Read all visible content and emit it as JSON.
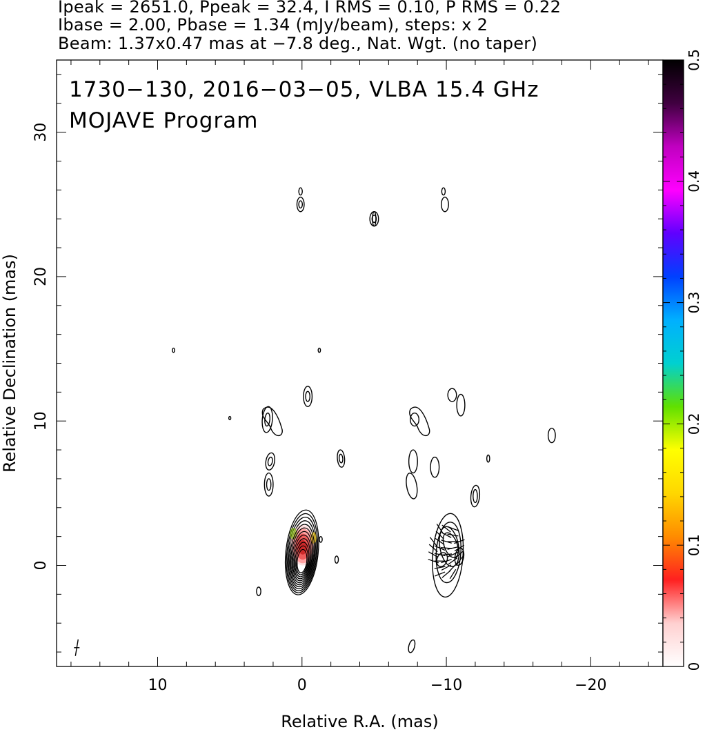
{
  "header": {
    "line1": "Ipeak = 2651.0, Ppeak = 32.4, I RMS = 0.10, P RMS = 0.22",
    "line2": "Ibase = 2.00, Pbase = 1.34 (mJy/beam), steps: x 2",
    "line3": "Beam: 1.37x0.47 mas at −7.8 deg., Nat. Wgt. (no taper)"
  },
  "chart_data": {
    "type": "contour",
    "title": "1730−130, 2016−03−05, VLBA 15.4 GHz",
    "subtitle": "MOJAVE Program",
    "xlabel": "Relative R.A. (mas)",
    "ylabel": "Relative Declination (mas)",
    "xlim": [
      17.0,
      -25.0
    ],
    "ylim": [
      -7.0,
      35.0
    ],
    "x_ticks": [
      10,
      0,
      -10,
      -20
    ],
    "x_tick_labels": [
      "10",
      "0",
      "−10",
      "−20"
    ],
    "y_ticks": [
      0,
      10,
      20,
      30
    ],
    "y_tick_labels": [
      "0",
      "10",
      "20",
      "30"
    ],
    "colorbar": {
      "range": [
        0,
        0.5
      ],
      "ticks": [
        0,
        0.1,
        0.2,
        0.3,
        0.4,
        0.5
      ],
      "tick_labels": [
        "0",
        "0.1",
        "0.2",
        "0.3",
        "0.4",
        "0.5"
      ],
      "colors": [
        "#ffffff",
        "#ffd0d0",
        "#ff2020",
        "#ff8c00",
        "#ffd700",
        "#ffff00",
        "#60e000",
        "#00d0d0",
        "#00b0ff",
        "#0040ff",
        "#6000ff",
        "#ff00ff",
        "#c000c0",
        "#400040",
        "#000000"
      ]
    },
    "core_peak_mJy": 2651.0,
    "left_panel_components": [
      {
        "x": 0.0,
        "y": 0.8,
        "type": "core"
      },
      {
        "x": 2.4,
        "y": 10.1
      },
      {
        "x": 2.2,
        "y": 7.2
      },
      {
        "x": 2.3,
        "y": 5.6
      },
      {
        "x": -0.4,
        "y": 11.7
      },
      {
        "x": -2.7,
        "y": 7.4
      },
      {
        "x": 0.1,
        "y": 25.0
      },
      {
        "x": -5.0,
        "y": 24.0
      },
      {
        "x": 8.9,
        "y": 14.9
      },
      {
        "x": 5.0,
        "y": 10.2
      },
      {
        "x": -1.2,
        "y": 14.9
      },
      {
        "x": 3.0,
        "y": -1.8
      },
      {
        "x": -2.4,
        "y": 0.4
      },
      {
        "x": -1.3,
        "y": 1.8
      }
    ],
    "right_panel_components": [
      {
        "x": -10.0,
        "y": 0.8,
        "type": "core"
      },
      {
        "x": -7.8,
        "y": 10.1
      },
      {
        "x": -7.7,
        "y": 7.2
      },
      {
        "x": -7.6,
        "y": 5.5
      },
      {
        "x": -10.4,
        "y": 11.8
      },
      {
        "x": -11.0,
        "y": 11.1
      },
      {
        "x": -12.0,
        "y": 4.8
      },
      {
        "x": -12.9,
        "y": 7.4
      },
      {
        "x": -9.2,
        "y": 6.8
      },
      {
        "x": -9.9,
        "y": 25.0
      },
      {
        "x": -7.6,
        "y": -5.6
      },
      {
        "x": -17.3,
        "y": 9.0
      }
    ],
    "beam": {
      "major_mas": 1.37,
      "minor_mas": 0.47,
      "pa_deg": -7.8
    }
  }
}
